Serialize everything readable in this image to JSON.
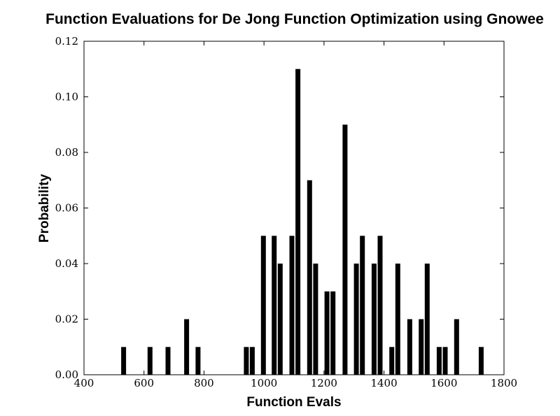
{
  "chart_data": {
    "type": "bar",
    "title": "Function Evaluations for De Jong Function Optimization using Gnowee",
    "xlabel": "Function Evals",
    "ylabel": "Probability",
    "xlim": [
      400,
      1800
    ],
    "ylim": [
      0,
      0.12
    ],
    "xticks": [
      "400",
      "600",
      "800",
      "1000",
      "1200",
      "1400",
      "1600",
      "1800"
    ],
    "yticks": [
      "0.00",
      "0.02",
      "0.04",
      "0.06",
      "0.08",
      "0.10",
      "0.12"
    ],
    "grid": false,
    "bar_color": "#000000",
    "bars": [
      {
        "x": 532,
        "y": 0.01
      },
      {
        "x": 620,
        "y": 0.01
      },
      {
        "x": 680,
        "y": 0.01
      },
      {
        "x": 742,
        "y": 0.02
      },
      {
        "x": 780,
        "y": 0.01
      },
      {
        "x": 941,
        "y": 0.01
      },
      {
        "x": 961,
        "y": 0.01
      },
      {
        "x": 998,
        "y": 0.05
      },
      {
        "x": 1034,
        "y": 0.05
      },
      {
        "x": 1054,
        "y": 0.04
      },
      {
        "x": 1093,
        "y": 0.05
      },
      {
        "x": 1113,
        "y": 0.11
      },
      {
        "x": 1152,
        "y": 0.07
      },
      {
        "x": 1172,
        "y": 0.04
      },
      {
        "x": 1210,
        "y": 0.03
      },
      {
        "x": 1230,
        "y": 0.03
      },
      {
        "x": 1270,
        "y": 0.09
      },
      {
        "x": 1308,
        "y": 0.04
      },
      {
        "x": 1328,
        "y": 0.05
      },
      {
        "x": 1367,
        "y": 0.04
      },
      {
        "x": 1387,
        "y": 0.05
      },
      {
        "x": 1426,
        "y": 0.01
      },
      {
        "x": 1446,
        "y": 0.04
      },
      {
        "x": 1486,
        "y": 0.02
      },
      {
        "x": 1524,
        "y": 0.02
      },
      {
        "x": 1544,
        "y": 0.04
      },
      {
        "x": 1584,
        "y": 0.01
      },
      {
        "x": 1604,
        "y": 0.01
      },
      {
        "x": 1642,
        "y": 0.02
      },
      {
        "x": 1724,
        "y": 0.01
      }
    ]
  }
}
